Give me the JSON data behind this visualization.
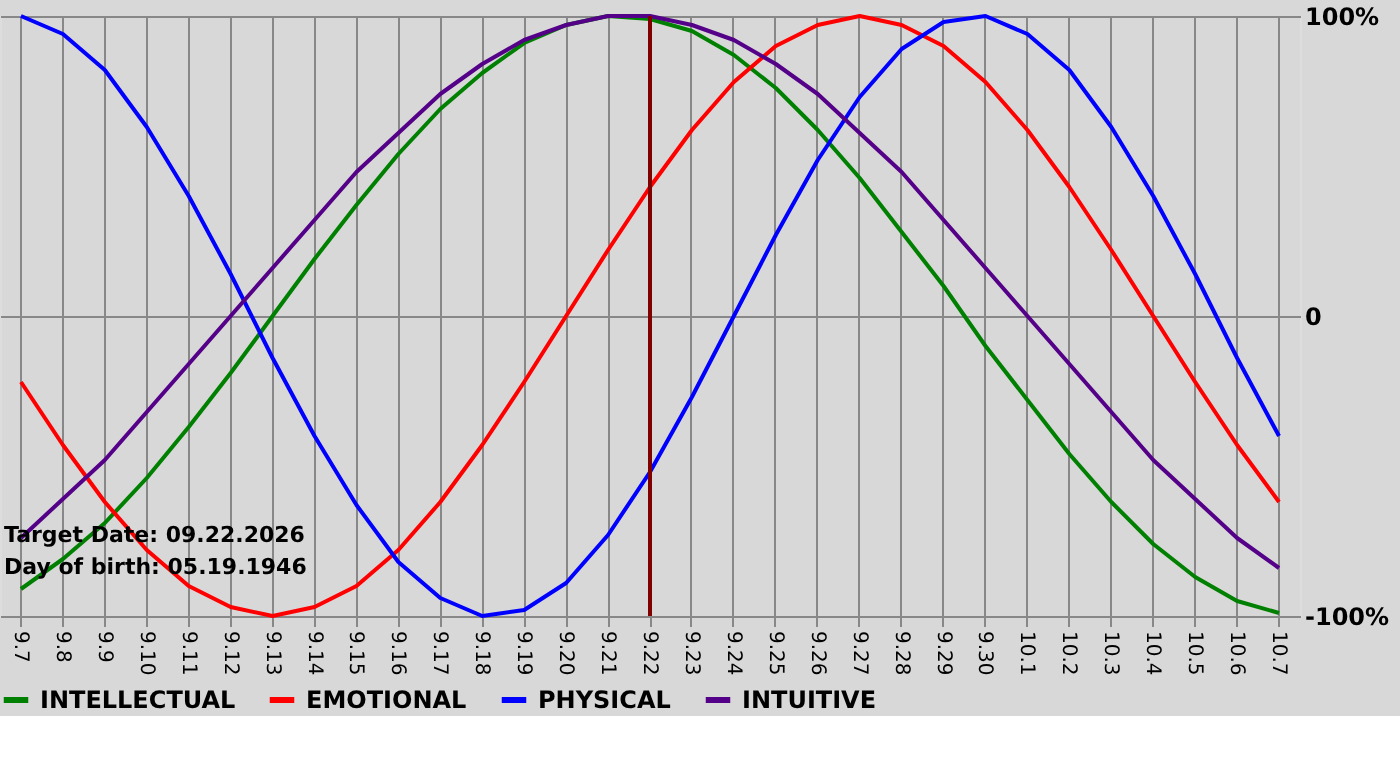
{
  "chart_data": {
    "type": "line",
    "categories": [
      "9.7",
      "9.8",
      "9.9",
      "9.10",
      "9.11",
      "9.12",
      "9.13",
      "9.14",
      "9.15",
      "9.16",
      "9.17",
      "9.18",
      "9.19",
      "9.20",
      "9.21",
      "9.22",
      "9.23",
      "9.24",
      "9.25",
      "9.26",
      "9.27",
      "9.28",
      "9.29",
      "9.30",
      "10.1",
      "10.2",
      "10.3",
      "10.4",
      "10.5",
      "10.6",
      "10.7"
    ],
    "series": [
      {
        "name": "INTELLECTUAL",
        "color": "#008000",
        "values": [
          -91,
          -81,
          -69,
          -54,
          -37,
          -19,
          0,
          19,
          37,
          54,
          69,
          81,
          91,
          97,
          100,
          99,
          95,
          87,
          76,
          62,
          46,
          28,
          10,
          -10,
          -28,
          -46,
          -62,
          -76,
          -87,
          -95,
          -99
        ]
      },
      {
        "name": "EMOTIONAL",
        "color": "#ff0000",
        "values": [
          -22,
          -43,
          -62,
          -78,
          -90,
          -97,
          -100,
          -97,
          -90,
          -78,
          -62,
          -43,
          -22,
          0,
          22,
          43,
          62,
          78,
          90,
          97,
          100,
          97,
          90,
          78,
          62,
          43,
          22,
          0,
          -22,
          -43,
          -62
        ]
      },
      {
        "name": "PHYSICAL",
        "color": "#0000ff",
        "values": [
          100,
          94,
          82,
          63,
          40,
          14,
          -14,
          -40,
          -63,
          -82,
          -94,
          -100,
          -98,
          -89,
          -73,
          -52,
          -27,
          0,
          27,
          52,
          73,
          89,
          98,
          100,
          94,
          82,
          63,
          40,
          14,
          -14,
          -40
        ]
      },
      {
        "name": "INTUITIVE",
        "color": "#550088",
        "values": [
          -74,
          -61,
          -48,
          -32,
          -16,
          0,
          16,
          32,
          48,
          61,
          74,
          84,
          92,
          97,
          100,
          100,
          97,
          92,
          84,
          74,
          61,
          48,
          32,
          16,
          0,
          -16,
          -32,
          -48,
          -61,
          -74,
          -84
        ]
      }
    ],
    "ylim": [
      -100,
      100
    ],
    "yticks": [
      {
        "value": 100,
        "label": "100%"
      },
      0,
      {
        "value": -100,
        "label": "-100%"
      }
    ],
    "ref_lines": [
      {
        "axis": "x",
        "value": "9.22",
        "color": "#800000"
      }
    ],
    "annotations": [
      "Target Date: 09.22.2026",
      "Day of birth: 05.19.1946"
    ],
    "grid": true,
    "legend": "bottom",
    "marker": "none",
    "line_style": "solid"
  }
}
